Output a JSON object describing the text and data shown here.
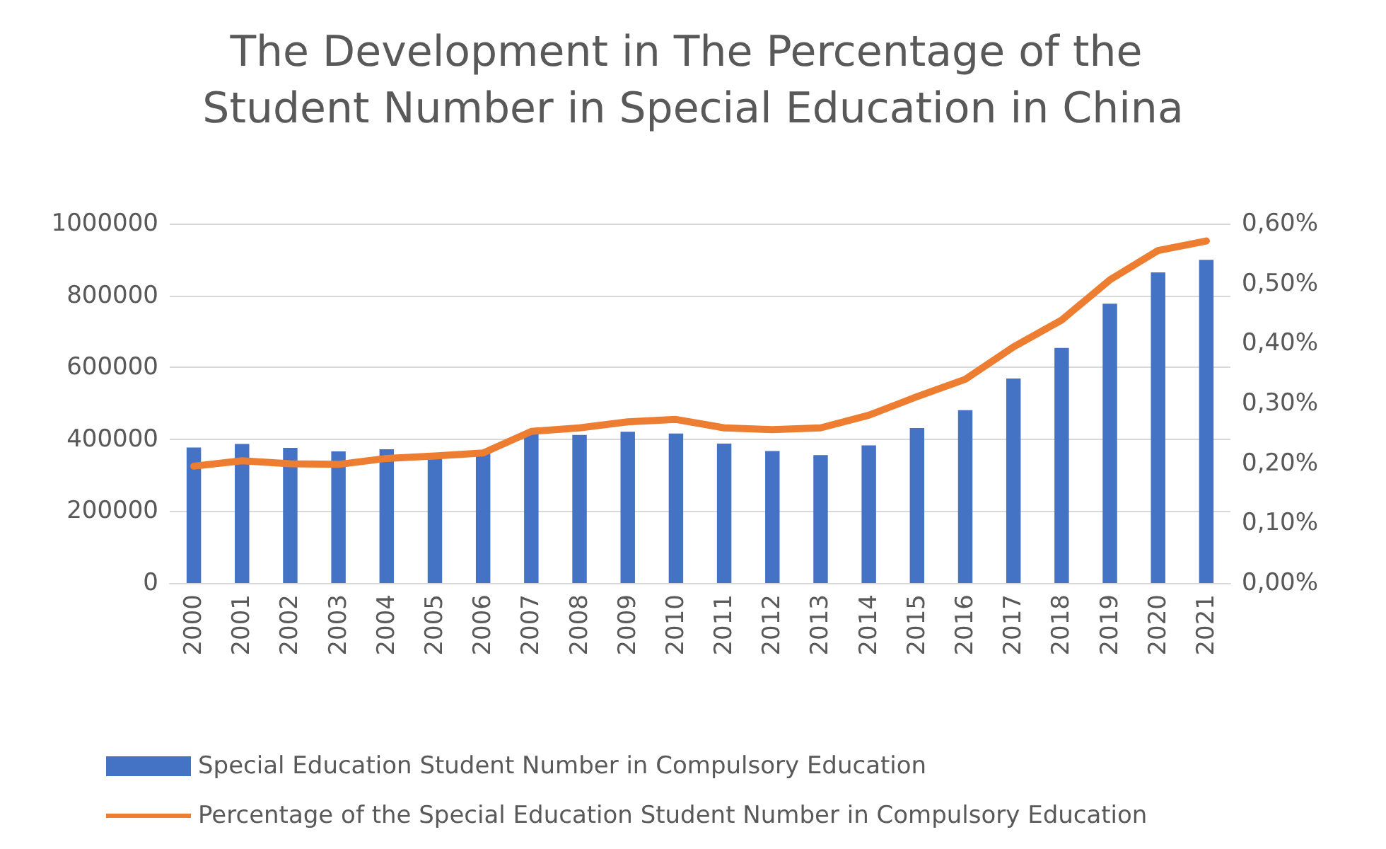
{
  "chart_data": {
    "type": "bar",
    "title": "The Development in The Percentage of the Student Number in Special Education in China",
    "categories": [
      "2000",
      "2001",
      "2002",
      "2003",
      "2004",
      "2005",
      "2006",
      "2007",
      "2008",
      "2009",
      "2010",
      "2011",
      "2012",
      "2013",
      "2014",
      "2015",
      "2016",
      "2017",
      "2018",
      "2019",
      "2020",
      "2021"
    ],
    "series": [
      {
        "name": "Special Education Student Number in Compulsory Education",
        "color": "#4472c4",
        "values": [
          377000,
          387000,
          376000,
          366000,
          372000,
          351000,
          362000,
          414000,
          412000,
          421000,
          416000,
          388000,
          367000,
          356000,
          383000,
          431000,
          481000,
          569000,
          654000,
          777000,
          864000,
          899000
        ]
      },
      {
        "name": "Percentage of the Special Education Student Number in Compulsory Education",
        "type": "line",
        "axis": "y2",
        "color": "#ed7d31",
        "values": [
          0.195,
          0.204,
          0.199,
          0.198,
          0.208,
          0.212,
          0.217,
          0.253,
          0.259,
          0.269,
          0.273,
          0.259,
          0.256,
          0.259,
          0.28,
          0.311,
          0.34,
          0.394,
          0.439,
          0.506,
          0.555,
          0.571
        ]
      }
    ],
    "ylim": [
      0,
      1000000
    ],
    "yticks": [
      0,
      200000,
      400000,
      600000,
      800000,
      1000000
    ],
    "y2lim": [
      0,
      0.6
    ],
    "y2ticks": [
      {
        "value": 0,
        "label": "0,00%"
      },
      {
        "value": 0.1,
        "label": "0,10%"
      },
      {
        "value": 0.2,
        "label": "0,20%"
      },
      {
        "value": 0.3,
        "label": "0,30%"
      },
      {
        "value": 0.4,
        "label": "0,40%"
      },
      {
        "value": 0.5,
        "label": "0,50%"
      },
      {
        "value": 0.6,
        "label": "0,60%"
      }
    ],
    "grid": "y",
    "legend": "bottom",
    "marker": "none",
    "line_style": "solid"
  }
}
